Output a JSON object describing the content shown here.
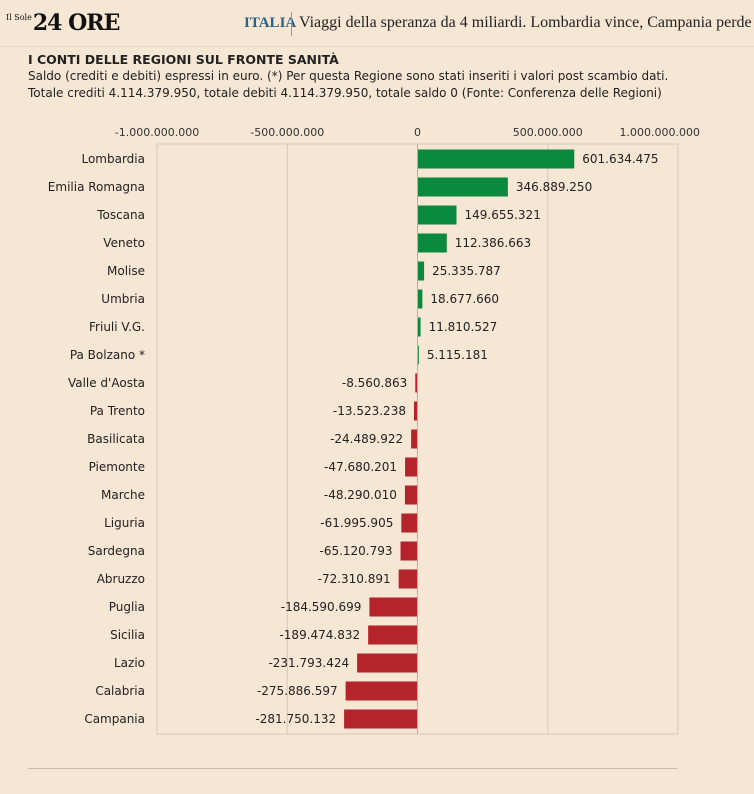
{
  "header": {
    "logo_small": "Il Sole",
    "logo": "24 ORE",
    "section": "ITALIA",
    "headline": "Viaggi della speranza da 4 miliardi. Lombardia vince, Campania perde"
  },
  "colors": {
    "positive": "#0a8a3f",
    "negative": "#b5232b",
    "background": "#f6e6d4"
  },
  "chart_data": {
    "type": "bar",
    "orientation": "horizontal",
    "title": "I CONTI DELLE REGIONI SUL FRONTE SANITÀ",
    "subtitle": "Saldo (crediti e debiti) espressi in euro. (*) Per questa Regione sono stati inseriti i valori post scambio dati. Totale crediti 4.114.379.950, totale debiti 4.114.379.950, totale saldo 0 (Fonte: Conferenza delle Regioni)",
    "xlim": [
      -1000000000,
      1000000000
    ],
    "xticks": [
      -1000000000,
      -500000000,
      0,
      500000000,
      1000000000
    ],
    "xtick_labels": [
      "-1.000.000.000",
      "-500.000.000",
      "0",
      "500.000.000",
      "1.000.000.000"
    ],
    "grid": true,
    "categories": [
      "Lombardia",
      "Emilia Romagna",
      "Toscana",
      "Veneto",
      "Molise",
      "Umbria",
      "Friuli V.G.",
      "Pa Bolzano *",
      "Valle d'Aosta",
      "Pa Trento",
      "Basilicata",
      "Piemonte",
      "Marche",
      "Liguria",
      "Sardegna",
      "Abruzzo",
      "Puglia",
      "Sicilia",
      "Lazio",
      "Calabria",
      "Campania"
    ],
    "values": [
      601634475,
      346889250,
      149655321,
      112386663,
      25335787,
      18677660,
      11810527,
      5115181,
      -8560863,
      -13523238,
      -24489922,
      -47680201,
      -48290010,
      -61995905,
      -65120793,
      -72310891,
      -184590699,
      -189474832,
      -231793424,
      -275886597,
      -281750132
    ],
    "value_labels": [
      "601.634.475",
      "346.889.250",
      "149.655.321",
      "112.386.663",
      "25.335.787",
      "18.677.660",
      "11.810.527",
      "5.115.181",
      "-8.560.863",
      "-13.523.238",
      "-24.489.922",
      "-47.680.201",
      "-48.290.010",
      "-61.995.905",
      "-65.120.793",
      "-72.310.891",
      "-184.590.699",
      "-189.474.832",
      "-231.793.424",
      "-275.886.597",
      "-281.750.132"
    ]
  }
}
